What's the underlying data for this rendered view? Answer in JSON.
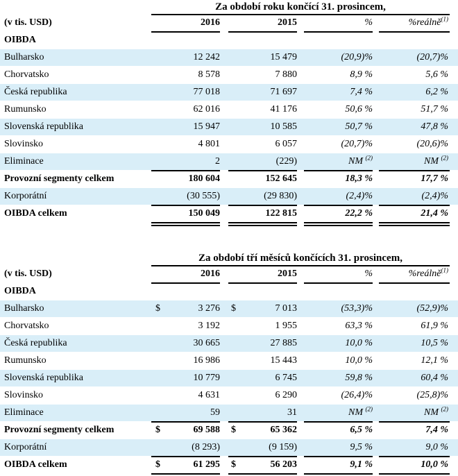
{
  "table1": {
    "period": "Za období roku končící 31. prosincem,",
    "unit": "(v tis. USD)",
    "col_2016": "2016",
    "col_2015": "2015",
    "col_pct": "%",
    "col_real": "%reálně",
    "col_real_note": "(1)",
    "section": "OIBDA",
    "rows": [
      {
        "label": "Bulharsko",
        "cur1": "",
        "v2016": "12 242",
        "cur2": "",
        "v2015": "15 479",
        "pct": "(20,9)%",
        "pct_note": "",
        "real": "(20,7)%",
        "real_note": ""
      },
      {
        "label": "Chorvatsko",
        "cur1": "",
        "v2016": "8 578",
        "cur2": "",
        "v2015": "7 880",
        "pct": "8,9 %",
        "pct_note": "",
        "real": "5,6 %",
        "real_note": ""
      },
      {
        "label": "Česká republika",
        "cur1": "",
        "v2016": "77 018",
        "cur2": "",
        "v2015": "71 697",
        "pct": "7,4 %",
        "pct_note": "",
        "real": "6,2 %",
        "real_note": ""
      },
      {
        "label": "Rumunsko",
        "cur1": "",
        "v2016": "62 016",
        "cur2": "",
        "v2015": "41 176",
        "pct": "50,6 %",
        "pct_note": "",
        "real": "51,7 %",
        "real_note": ""
      },
      {
        "label": "Slovenská republika",
        "cur1": "",
        "v2016": "15 947",
        "cur2": "",
        "v2015": "10 585",
        "pct": "50,7 %",
        "pct_note": "",
        "real": "47,8 %",
        "real_note": ""
      },
      {
        "label": "Slovinsko",
        "cur1": "",
        "v2016": "4 801",
        "cur2": "",
        "v2015": "6 057",
        "pct": "(20,7)%",
        "pct_note": "",
        "real": "(20,6)%",
        "real_note": ""
      },
      {
        "label": "Eliminace",
        "cur1": "",
        "v2016": "2",
        "cur2": "",
        "v2015": "(229)",
        "pct": "NM ",
        "pct_note": "(2)",
        "real": "NM ",
        "real_note": "(2)"
      },
      {
        "label": "Provozní segmenty celkem",
        "cur1": "",
        "v2016": "180 604",
        "cur2": "",
        "v2015": "152 645",
        "pct": "18,3 %",
        "pct_note": "",
        "real": "17,7 %",
        "real_note": ""
      },
      {
        "label": "Korporátní",
        "cur1": "",
        "v2016": "(30 555)",
        "cur2": "",
        "v2015": "(29 830)",
        "pct": "(2,4)%",
        "pct_note": "",
        "real": "(2,4)%",
        "real_note": ""
      },
      {
        "label": "OIBDA celkem",
        "cur1": "",
        "v2016": "150 049",
        "cur2": "",
        "v2015": "122 815",
        "pct": "22,2 %",
        "pct_note": "",
        "real": "21,4 %",
        "real_note": ""
      }
    ]
  },
  "table2": {
    "period": "Za období tří měsíců končících 31. prosincem,",
    "unit": "(v tis. USD)",
    "col_2016": "2016",
    "col_2015": "2015",
    "col_pct": "%",
    "col_real": "%reálně",
    "col_real_note": "(1)",
    "section": "OIBDA",
    "rows": [
      {
        "label": "Bulharsko",
        "cur1": "$",
        "v2016": "3 276",
        "cur2": "$",
        "v2015": "7 013",
        "pct": "(53,3)%",
        "pct_note": "",
        "real": "(52,9)%",
        "real_note": ""
      },
      {
        "label": "Chorvatsko",
        "cur1": "",
        "v2016": "3 192",
        "cur2": "",
        "v2015": "1 955",
        "pct": "63,3 %",
        "pct_note": "",
        "real": "61,9 %",
        "real_note": ""
      },
      {
        "label": "Česká republika",
        "cur1": "",
        "v2016": "30 665",
        "cur2": "",
        "v2015": "27 885",
        "pct": "10,0 %",
        "pct_note": "",
        "real": "10,5 %",
        "real_note": ""
      },
      {
        "label": "Rumunsko",
        "cur1": "",
        "v2016": "16 986",
        "cur2": "",
        "v2015": "15 443",
        "pct": "10,0 %",
        "pct_note": "",
        "real": "12,1 %",
        "real_note": ""
      },
      {
        "label": "Slovenská republika",
        "cur1": "",
        "v2016": "10 779",
        "cur2": "",
        "v2015": "6 745",
        "pct": "59,8 %",
        "pct_note": "",
        "real": "60,4 %",
        "real_note": ""
      },
      {
        "label": "Slovinsko",
        "cur1": "",
        "v2016": "4 631",
        "cur2": "",
        "v2015": "6 290",
        "pct": "(26,4)%",
        "pct_note": "",
        "real": "(25,8)%",
        "real_note": ""
      },
      {
        "label": "Eliminace",
        "cur1": "",
        "v2016": "59",
        "cur2": "",
        "v2015": "31",
        "pct": "NM ",
        "pct_note": "(2)",
        "real": "NM ",
        "real_note": "(2)"
      },
      {
        "label": "Provozní segmenty celkem",
        "cur1": "$",
        "v2016": "69 588",
        "cur2": "$",
        "v2015": "65 362",
        "pct": "6,5 %",
        "pct_note": "",
        "real": "7,4 %",
        "real_note": ""
      },
      {
        "label": "Korporátní",
        "cur1": "",
        "v2016": "(8 293)",
        "cur2": "",
        "v2015": "(9 159)",
        "pct": "9,5 %",
        "pct_note": "",
        "real": "9,0 %",
        "real_note": ""
      },
      {
        "label": "OIBDA celkem",
        "cur1": "$",
        "v2016": "61 295",
        "cur2": "$",
        "v2015": "56 203",
        "pct": "9,1 %",
        "pct_note": "",
        "real": "10,0 %",
        "real_note": ""
      }
    ]
  },
  "style": {
    "shade_color": "#d9eef8",
    "rule_color": "#000000"
  }
}
